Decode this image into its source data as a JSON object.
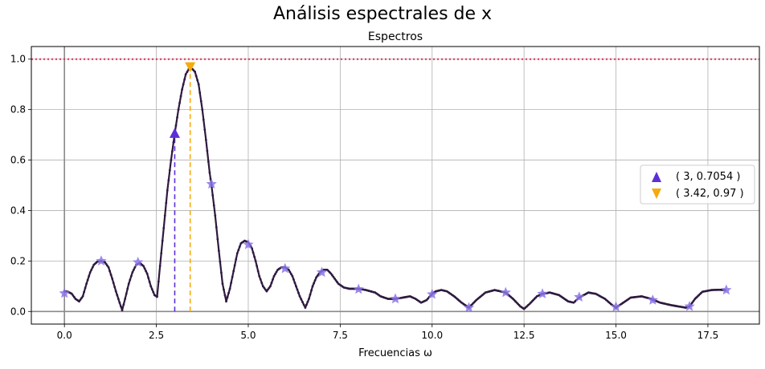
{
  "figure": {
    "suptitle": "Análisis espectrales de x",
    "axes_title": "Espectros"
  },
  "chart_data": {
    "type": "line",
    "title": "Espectros",
    "xlabel": "Frecuencias ω",
    "ylabel": "",
    "xlim": [
      -0.9,
      18.9
    ],
    "ylim": [
      -0.05,
      1.05
    ],
    "x_ticks": [
      "0.0",
      "2.5",
      "5.0",
      "7.5",
      "10.0",
      "12.5",
      "15.0",
      "17.5"
    ],
    "y_ticks": [
      "0.0",
      "0.2",
      "0.4",
      "0.6",
      "0.8",
      "1.0"
    ],
    "grid": true,
    "legend_position": "center-right",
    "reference_line": {
      "y": 1.0,
      "color": "#e0305a",
      "style": "dotted"
    },
    "spectrum_color": "#2e1a3e",
    "spectrum_points": [
      [
        0.0,
        0.08
      ],
      [
        0.1,
        0.078
      ],
      [
        0.2,
        0.07
      ],
      [
        0.3,
        0.05
      ],
      [
        0.4,
        0.04
      ],
      [
        0.5,
        0.06
      ],
      [
        0.6,
        0.11
      ],
      [
        0.7,
        0.155
      ],
      [
        0.8,
        0.185
      ],
      [
        0.9,
        0.198
      ],
      [
        1.0,
        0.2
      ],
      [
        1.1,
        0.195
      ],
      [
        1.2,
        0.175
      ],
      [
        1.3,
        0.13
      ],
      [
        1.4,
        0.08
      ],
      [
        1.5,
        0.035
      ],
      [
        1.57,
        0.005
      ],
      [
        1.65,
        0.05
      ],
      [
        1.75,
        0.11
      ],
      [
        1.85,
        0.155
      ],
      [
        1.95,
        0.185
      ],
      [
        2.05,
        0.192
      ],
      [
        2.15,
        0.18
      ],
      [
        2.25,
        0.15
      ],
      [
        2.35,
        0.1
      ],
      [
        2.45,
        0.065
      ],
      [
        2.52,
        0.058
      ],
      [
        2.6,
        0.18
      ],
      [
        2.7,
        0.33
      ],
      [
        2.8,
        0.48
      ],
      [
        2.9,
        0.6
      ],
      [
        3.0,
        0.7054
      ],
      [
        3.1,
        0.8
      ],
      [
        3.2,
        0.88
      ],
      [
        3.3,
        0.94
      ],
      [
        3.42,
        0.97
      ],
      [
        3.55,
        0.95
      ],
      [
        3.65,
        0.9
      ],
      [
        3.75,
        0.8
      ],
      [
        3.85,
        0.68
      ],
      [
        3.95,
        0.55
      ],
      [
        4.0,
        0.5
      ],
      [
        4.1,
        0.38
      ],
      [
        4.2,
        0.24
      ],
      [
        4.3,
        0.11
      ],
      [
        4.4,
        0.04
      ],
      [
        4.5,
        0.09
      ],
      [
        4.6,
        0.16
      ],
      [
        4.7,
        0.23
      ],
      [
        4.8,
        0.27
      ],
      [
        4.9,
        0.28
      ],
      [
        5.0,
        0.275
      ],
      [
        5.1,
        0.25
      ],
      [
        5.2,
        0.2
      ],
      [
        5.3,
        0.14
      ],
      [
        5.4,
        0.1
      ],
      [
        5.5,
        0.08
      ],
      [
        5.6,
        0.1
      ],
      [
        5.7,
        0.14
      ],
      [
        5.8,
        0.165
      ],
      [
        5.9,
        0.175
      ],
      [
        6.0,
        0.175
      ],
      [
        6.1,
        0.165
      ],
      [
        6.2,
        0.14
      ],
      [
        6.3,
        0.1
      ],
      [
        6.4,
        0.06
      ],
      [
        6.55,
        0.015
      ],
      [
        6.65,
        0.05
      ],
      [
        6.75,
        0.1
      ],
      [
        6.85,
        0.135
      ],
      [
        6.95,
        0.155
      ],
      [
        7.05,
        0.165
      ],
      [
        7.15,
        0.165
      ],
      [
        7.25,
        0.15
      ],
      [
        7.35,
        0.13
      ],
      [
        7.45,
        0.11
      ],
      [
        7.6,
        0.095
      ],
      [
        7.75,
        0.09
      ],
      [
        8.0,
        0.09
      ],
      [
        8.2,
        0.085
      ],
      [
        8.45,
        0.075
      ],
      [
        8.6,
        0.06
      ],
      [
        8.8,
        0.05
      ],
      [
        9.0,
        0.05
      ],
      [
        9.2,
        0.055
      ],
      [
        9.4,
        0.06
      ],
      [
        9.55,
        0.05
      ],
      [
        9.7,
        0.035
      ],
      [
        9.85,
        0.045
      ],
      [
        10.0,
        0.07
      ],
      [
        10.1,
        0.08
      ],
      [
        10.25,
        0.085
      ],
      [
        10.4,
        0.08
      ],
      [
        10.6,
        0.06
      ],
      [
        10.8,
        0.035
      ],
      [
        11.0,
        0.015
      ],
      [
        11.2,
        0.045
      ],
      [
        11.45,
        0.075
      ],
      [
        11.7,
        0.085
      ],
      [
        12.0,
        0.075
      ],
      [
        12.2,
        0.05
      ],
      [
        12.4,
        0.02
      ],
      [
        12.5,
        0.01
      ],
      [
        12.65,
        0.03
      ],
      [
        12.85,
        0.06
      ],
      [
        13.0,
        0.07
      ],
      [
        13.2,
        0.075
      ],
      [
        13.45,
        0.065
      ],
      [
        13.7,
        0.04
      ],
      [
        13.85,
        0.035
      ],
      [
        14.0,
        0.055
      ],
      [
        14.25,
        0.075
      ],
      [
        14.45,
        0.07
      ],
      [
        14.7,
        0.05
      ],
      [
        14.9,
        0.025
      ],
      [
        15.0,
        0.015
      ],
      [
        15.15,
        0.03
      ],
      [
        15.4,
        0.055
      ],
      [
        15.7,
        0.06
      ],
      [
        15.95,
        0.05
      ],
      [
        16.2,
        0.035
      ],
      [
        16.5,
        0.025
      ],
      [
        16.7,
        0.02
      ],
      [
        16.9,
        0.015
      ],
      [
        17.0,
        0.02
      ],
      [
        17.15,
        0.05
      ],
      [
        17.35,
        0.078
      ],
      [
        17.6,
        0.085
      ],
      [
        17.8,
        0.086
      ],
      [
        18.0,
        0.085
      ]
    ],
    "star_markers": {
      "color": "#8a74e6",
      "points": [
        [
          0,
          0.072
        ],
        [
          1,
          0.2
        ],
        [
          2,
          0.195
        ],
        [
          4,
          0.505
        ],
        [
          5,
          0.265
        ],
        [
          6,
          0.17
        ],
        [
          7,
          0.155
        ],
        [
          8,
          0.088
        ],
        [
          9,
          0.05
        ],
        [
          10,
          0.068
        ],
        [
          11,
          0.015
        ],
        [
          12,
          0.075
        ],
        [
          13,
          0.07
        ],
        [
          14,
          0.057
        ],
        [
          15,
          0.018
        ],
        [
          16,
          0.045
        ],
        [
          17,
          0.02
        ],
        [
          18,
          0.085
        ]
      ]
    },
    "markers": [
      {
        "x": 3,
        "y": 0.7054,
        "label": "( 3, 0.7054 )",
        "shape": "triangle-up",
        "color": "#5b2fd8"
      },
      {
        "x": 3.42,
        "y": 0.97,
        "label": "( 3.42, 0.97 )",
        "shape": "triangle-down",
        "color": "#f7aa0e"
      }
    ]
  }
}
